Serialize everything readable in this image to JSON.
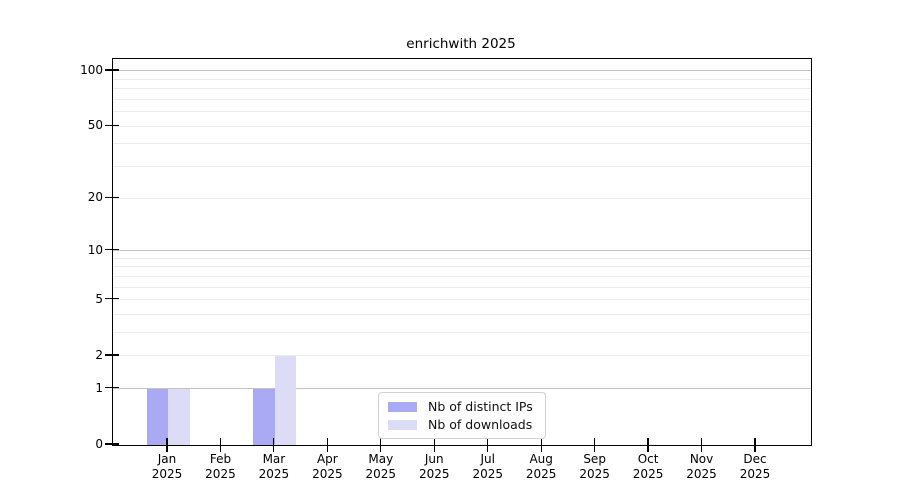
{
  "chart_data": {
    "type": "bar",
    "title": "enrichwith 2025",
    "categories": [
      "Jan",
      "Feb",
      "Mar",
      "Apr",
      "May",
      "Jun",
      "Jul",
      "Aug",
      "Sep",
      "Oct",
      "Nov",
      "Dec"
    ],
    "x_axis": {
      "year_line": "2025"
    },
    "series": [
      {
        "name": "Nb of distinct IPs",
        "color": "#a9a9f4",
        "values": [
          1,
          0,
          1,
          0,
          0,
          0,
          0,
          0,
          0,
          0,
          0,
          0
        ]
      },
      {
        "name": "Nb of downloads",
        "color": "#dcdcf7",
        "values": [
          1,
          0,
          2,
          0,
          0,
          0,
          0,
          0,
          0,
          0,
          0,
          0
        ]
      }
    ],
    "y_axis": {
      "scale": "log1p",
      "labeled_ticks": [
        0,
        1,
        2,
        5,
        10,
        20,
        50,
        100
      ],
      "major_gridlines": [
        1,
        10,
        100
      ],
      "minor_gridlines": [
        2,
        3,
        4,
        5,
        6,
        7,
        8,
        9,
        20,
        30,
        40,
        50,
        60,
        70,
        80,
        90
      ],
      "ylim": [
        0,
        116
      ]
    },
    "legend": {
      "position": "lower center"
    },
    "grid": true
  }
}
